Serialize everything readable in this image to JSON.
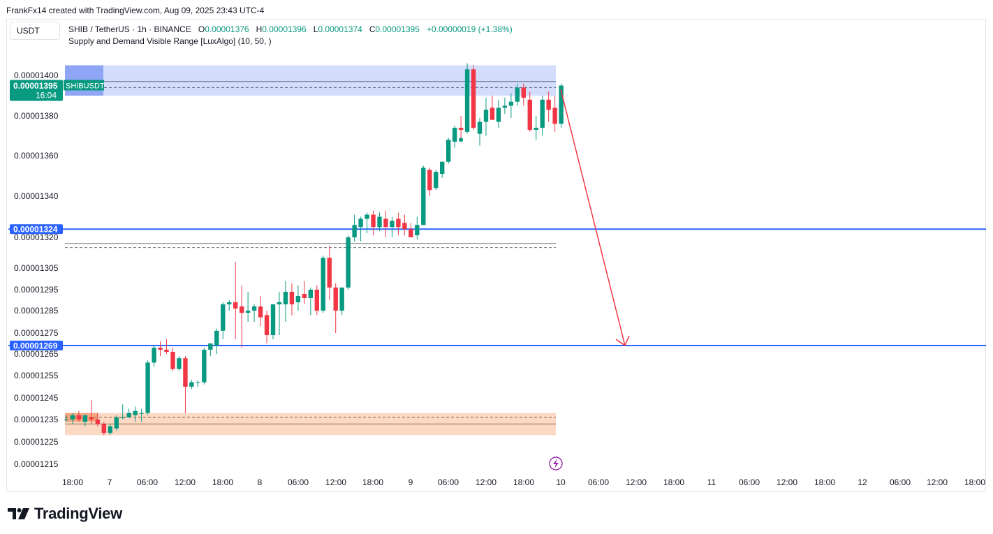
{
  "header": {
    "attribution": "FrankFx14 created with TradingView.com, Aug 09, 2025 23:43 UTC-4"
  },
  "currency_button": "USDT",
  "legend": {
    "symbol": "SHIB / TetherUS · 1h · BINANCE",
    "o_label": "O",
    "o_value": "0.00001376",
    "h_label": "H",
    "h_value": "0.00001396",
    "l_label": "L",
    "l_value": "0.00001374",
    "c_label": "C",
    "c_value": "0.00001395",
    "change": "+0.00000019 (+1.38%)",
    "indicator": "Supply and Demand Visible Range [LuxAlgo] (10, 50, )"
  },
  "price_tag": {
    "ticker": "SHIBUSDT",
    "price": "0.00001395",
    "countdown": "16:04"
  },
  "footer": {
    "brand": "TradingView"
  },
  "colors": {
    "up": "#089981",
    "down": "#f23645",
    "hline": "#2962ff",
    "supply_zone": "#d4dcfc",
    "demand_zone": "#fcd9c4",
    "arrow": "#f23645",
    "lightning": "#9c27b0"
  },
  "chart_data": {
    "type": "candlestick",
    "y_tick_labels": [
      "0.00001400",
      "0.00001380",
      "0.00001360",
      "0.00001340",
      "0.00001320",
      "0.00001305",
      "0.00001295",
      "0.00001285",
      "0.00001275",
      "0.00001265",
      "0.00001255",
      "0.00001245",
      "0.00001235",
      "0.00001225",
      "0.00001215"
    ],
    "x_tick_labels": [
      "18:00",
      "7",
      "06:00",
      "12:00",
      "18:00",
      "8",
      "06:00",
      "12:00",
      "18:00",
      "9",
      "06:00",
      "12:00",
      "18:00",
      "10",
      "06:00",
      "12:00",
      "18:00",
      "11",
      "06:00",
      "12:00",
      "18:00",
      "12",
      "06:00",
      "12:00",
      "18:00"
    ],
    "horizontal_lines": [
      {
        "price": 1.324e-05,
        "label": "0.00001324"
      },
      {
        "price": 1.269e-05,
        "label": "0.00001269"
      }
    ],
    "arrow": {
      "from_price": 1.393e-05,
      "to_price": 1.269e-05,
      "direction": "down"
    },
    "supply_zone": {
      "top": 1.405e-05,
      "bottom": 1.39e-05
    },
    "demand_zone": {
      "top": 1.238e-05,
      "bottom": 1.228e-05
    },
    "candles": [
      {
        "o": 1.235e-05,
        "h": 1.237e-05,
        "l": 1.234e-05,
        "c": 1.235e-05
      },
      {
        "o": 1.235e-05,
        "h": 1.238e-05,
        "l": 1.233e-05,
        "c": 1.237e-05
      },
      {
        "o": 1.237e-05,
        "h": 1.239e-05,
        "l": 1.234e-05,
        "c": 1.235e-05
      },
      {
        "o": 1.234e-05,
        "h": 1.236e-05,
        "l": 1.232e-05,
        "c": 1.237e-05
      },
      {
        "o": 1.236e-05,
        "h": 1.244e-05,
        "l": 1.233e-05,
        "c": 1.235e-05
      },
      {
        "o": 1.235e-05,
        "h": 1.238e-05,
        "l": 1.232e-05,
        "c": 1.233e-05
      },
      {
        "o": 1.233e-05,
        "h": 1.234e-05,
        "l": 1.228e-05,
        "c": 1.229e-05
      },
      {
        "o": 1.229e-05,
        "h": 1.233e-05,
        "l": 1.228e-05,
        "c": 1.232e-05
      },
      {
        "o": 1.231e-05,
        "h": 1.237e-05,
        "l": 1.23e-05,
        "c": 1.236e-05
      },
      {
        "o": 1.236e-05,
        "h": 1.242e-05,
        "l": 1.235e-05,
        "c": 1.236e-05
      },
      {
        "o": 1.236e-05,
        "h": 1.24e-05,
        "l": 1.236e-05,
        "c": 1.238e-05
      },
      {
        "o": 1.237e-05,
        "h": 1.241e-05,
        "l": 1.234e-05,
        "c": 1.239e-05
      },
      {
        "o": 1.238e-05,
        "h": 1.24e-05,
        "l": 1.234e-05,
        "c": 1.238e-05
      },
      {
        "o": 1.238e-05,
        "h": 1.262e-05,
        "l": 1.237e-05,
        "c": 1.261e-05
      },
      {
        "o": 1.261e-05,
        "h": 1.269e-05,
        "l": 1.259e-05,
        "c": 1.268e-05
      },
      {
        "o": 1.268e-05,
        "h": 1.271e-05,
        "l": 1.264e-05,
        "c": 1.267e-05
      },
      {
        "o": 1.267e-05,
        "h": 1.272e-05,
        "l": 1.265e-05,
        "c": 1.266e-05
      },
      {
        "o": 1.266e-05,
        "h": 1.268e-05,
        "l": 1.257e-05,
        "c": 1.258e-05
      },
      {
        "o": 1.258e-05,
        "h": 1.264e-05,
        "l": 1.257e-05,
        "c": 1.263e-05
      },
      {
        "o": 1.263e-05,
        "h": 1.264e-05,
        "l": 1.238e-05,
        "c": 1.25e-05
      },
      {
        "o": 1.25e-05,
        "h": 1.253e-05,
        "l": 1.249e-05,
        "c": 1.252e-05
      },
      {
        "o": 1.252e-05,
        "h": 1.253e-05,
        "l": 1.25e-05,
        "c": 1.252e-05
      },
      {
        "o": 1.252e-05,
        "h": 1.268e-05,
        "l": 1.251e-05,
        "c": 1.267e-05
      },
      {
        "o": 1.267e-05,
        "h": 1.27e-05,
        "l": 1.264e-05,
        "c": 1.27e-05
      },
      {
        "o": 1.269e-05,
        "h": 1.277e-05,
        "l": 1.265e-05,
        "c": 1.276e-05
      },
      {
        "o": 1.276e-05,
        "h": 1.289e-05,
        "l": 1.272e-05,
        "c": 1.288e-05
      },
      {
        "o": 1.288e-05,
        "h": 1.29e-05,
        "l": 1.285e-05,
        "c": 1.289e-05
      },
      {
        "o": 1.289e-05,
        "h": 1.308e-05,
        "l": 1.272e-05,
        "c": 1.286e-05
      },
      {
        "o": 1.287e-05,
        "h": 1.297e-05,
        "l": 1.268e-05,
        "c": 1.284e-05
      },
      {
        "o": 1.284e-05,
        "h": 1.294e-05,
        "l": 1.28e-05,
        "c": 1.285e-05
      },
      {
        "o": 1.285e-05,
        "h": 1.288e-05,
        "l": 1.28e-05,
        "c": 1.287e-05
      },
      {
        "o": 1.287e-05,
        "h": 1.292e-05,
        "l": 1.278e-05,
        "c": 1.282e-05
      },
      {
        "o": 1.283e-05,
        "h": 1.285e-05,
        "l": 1.27e-05,
        "c": 1.274e-05
      },
      {
        "o": 1.274e-05,
        "h": 1.288e-05,
        "l": 1.272e-05,
        "c": 1.288e-05
      },
      {
        "o": 1.288e-05,
        "h": 1.294e-05,
        "l": 1.274e-05,
        "c": 1.289e-05
      },
      {
        "o": 1.288e-05,
        "h": 1.299e-05,
        "l": 1.28e-05,
        "c": 1.294e-05
      },
      {
        "o": 1.294e-05,
        "h": 1.298e-05,
        "l": 1.283e-05,
        "c": 1.288e-05
      },
      {
        "o": 1.289e-05,
        "h": 1.297e-05,
        "l": 1.285e-05,
        "c": 1.292e-05
      },
      {
        "o": 1.293e-05,
        "h": 1.299e-05,
        "l": 1.288e-05,
        "c": 1.291e-05
      },
      {
        "o": 1.291e-05,
        "h": 1.296e-05,
        "l": 1.283e-05,
        "c": 1.295e-05
      },
      {
        "o": 1.295e-05,
        "h": 1.297e-05,
        "l": 1.283e-05,
        "c": 1.285e-05
      },
      {
        "o": 1.285e-05,
        "h": 1.311e-05,
        "l": 1.284e-05,
        "c": 1.31e-05
      },
      {
        "o": 1.31e-05,
        "h": 1.316e-05,
        "l": 1.29e-05,
        "c": 1.296e-05
      },
      {
        "o": 1.296e-05,
        "h": 1.298e-05,
        "l": 1.275e-05,
        "c": 1.285e-05
      },
      {
        "o": 1.285e-05,
        "h": 1.296e-05,
        "l": 1.283e-05,
        "c": 1.296e-05
      },
      {
        "o": 1.296e-05,
        "h": 1.321e-05,
        "l": 1.295e-05,
        "c": 1.32e-05
      },
      {
        "o": 1.32e-05,
        "h": 1.331e-05,
        "l": 1.318e-05,
        "c": 1.326e-05
      },
      {
        "o": 1.325e-05,
        "h": 1.33e-05,
        "l": 1.318e-05,
        "c": 1.329e-05
      },
      {
        "o": 1.329e-05,
        "h": 1.332e-05,
        "l": 1.322e-05,
        "c": 1.331e-05
      },
      {
        "o": 1.331e-05,
        "h": 1.333e-05,
        "l": 1.321e-05,
        "c": 1.325e-05
      },
      {
        "o": 1.325e-05,
        "h": 1.332e-05,
        "l": 1.323e-05,
        "c": 1.33e-05
      },
      {
        "o": 1.329e-05,
        "h": 1.333e-05,
        "l": 1.32e-05,
        "c": 1.325e-05
      },
      {
        "o": 1.325e-05,
        "h": 1.33e-05,
        "l": 1.32e-05,
        "c": 1.328e-05
      },
      {
        "o": 1.329e-05,
        "h": 1.332e-05,
        "l": 1.321e-05,
        "c": 1.325e-05
      },
      {
        "o": 1.327e-05,
        "h": 1.331e-05,
        "l": 1.321e-05,
        "c": 1.324e-05
      },
      {
        "o": 1.324e-05,
        "h": 1.327e-05,
        "l": 1.32e-05,
        "c": 1.32e-05
      },
      {
        "o": 1.321e-05,
        "h": 1.33e-05,
        "l": 1.319e-05,
        "c": 1.326e-05
      },
      {
        "o": 1.326e-05,
        "h": 1.355e-05,
        "l": 1.326e-05,
        "c": 1.354e-05
      },
      {
        "o": 1.353e-05,
        "h": 1.354e-05,
        "l": 1.34e-05,
        "c": 1.343e-05
      },
      {
        "o": 1.344e-05,
        "h": 1.353e-05,
        "l": 1.343e-05,
        "c": 1.352e-05
      },
      {
        "o": 1.351e-05,
        "h": 1.357e-05,
        "l": 1.349e-05,
        "c": 1.357e-05
      },
      {
        "o": 1.357e-05,
        "h": 1.369e-05,
        "l": 1.356e-05,
        "c": 1.368e-05
      },
      {
        "o": 1.367e-05,
        "h": 1.375e-05,
        "l": 1.364e-05,
        "c": 1.374e-05
      },
      {
        "o": 1.374e-05,
        "h": 1.38e-05,
        "l": 1.367e-05,
        "c": 1.373e-05
      },
      {
        "o": 1.372e-05,
        "h": 1.406e-05,
        "l": 1.371e-05,
        "c": 1.403e-05
      },
      {
        "o": 1.403e-05,
        "h": 1.405e-05,
        "l": 1.373e-05,
        "c": 1.374e-05
      },
      {
        "o": 1.371e-05,
        "h": 1.379e-05,
        "l": 1.365e-05,
        "c": 1.377e-05
      },
      {
        "o": 1.377e-05,
        "h": 1.389e-05,
        "l": 1.37e-05,
        "c": 1.383e-05
      },
      {
        "o": 1.384e-05,
        "h": 1.39e-05,
        "l": 1.378e-05,
        "c": 1.378e-05
      },
      {
        "o": 1.377e-05,
        "h": 1.388e-05,
        "l": 1.374e-05,
        "c": 1.384e-05
      },
      {
        "o": 1.384e-05,
        "h": 1.389e-05,
        "l": 1.381e-05,
        "c": 1.385e-05
      },
      {
        "o": 1.385e-05,
        "h": 1.391e-05,
        "l": 1.379e-05,
        "c": 1.387e-05
      },
      {
        "o": 1.387e-05,
        "h": 1.396e-05,
        "l": 1.385e-05,
        "c": 1.394e-05
      },
      {
        "o": 1.394e-05,
        "h": 1.396e-05,
        "l": 1.385e-05,
        "c": 1.389e-05
      },
      {
        "o": 1.388e-05,
        "h": 1.392e-05,
        "l": 1.372e-05,
        "c": 1.373e-05
      },
      {
        "o": 1.373e-05,
        "h": 1.38e-05,
        "l": 1.368e-05,
        "c": 1.374e-05
      },
      {
        "o": 1.374e-05,
        "h": 1.39e-05,
        "l": 1.37e-05,
        "c": 1.388e-05
      },
      {
        "o": 1.388e-05,
        "h": 1.392e-05,
        "l": 1.377e-05,
        "c": 1.383e-05
      },
      {
        "o": 1.384e-05,
        "h": 1.39e-05,
        "l": 1.372e-05,
        "c": 1.376e-05
      },
      {
        "o": 1.376e-05,
        "h": 1.396e-05,
        "l": 1.374e-05,
        "c": 1.395e-05
      }
    ]
  }
}
